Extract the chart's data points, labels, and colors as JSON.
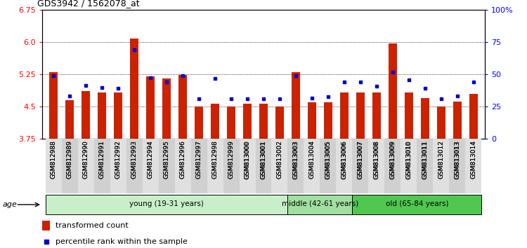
{
  "title": "GDS3942 / 1562078_at",
  "samples": [
    "GSM812988",
    "GSM812989",
    "GSM812990",
    "GSM812991",
    "GSM812992",
    "GSM812993",
    "GSM812994",
    "GSM812995",
    "GSM812996",
    "GSM812997",
    "GSM812998",
    "GSM812999",
    "GSM813000",
    "GSM813001",
    "GSM813002",
    "GSM813003",
    "GSM813004",
    "GSM813005",
    "GSM813006",
    "GSM813007",
    "GSM813008",
    "GSM813009",
    "GSM813010",
    "GSM813011",
    "GSM813012",
    "GSM813013",
    "GSM813014"
  ],
  "red_values": [
    5.3,
    4.65,
    4.87,
    4.83,
    4.83,
    6.08,
    5.2,
    5.15,
    5.23,
    4.5,
    4.57,
    4.5,
    4.57,
    4.57,
    4.5,
    5.3,
    4.6,
    4.6,
    4.83,
    4.83,
    4.83,
    5.97,
    4.83,
    4.7,
    4.5,
    4.62,
    4.8
  ],
  "blue_values": [
    5.22,
    4.75,
    5.0,
    4.95,
    4.93,
    5.82,
    5.17,
    5.08,
    5.22,
    4.68,
    5.15,
    4.68,
    4.68,
    4.68,
    4.68,
    5.22,
    4.7,
    4.73,
    5.07,
    5.07,
    4.97,
    5.3,
    5.13,
    4.93,
    4.68,
    4.75,
    5.07
  ],
  "groups": [
    {
      "label": "young (19-31 years)",
      "start": 0,
      "end": 15,
      "color": "#c8f0c8"
    },
    {
      "label": "middle (42-61 years)",
      "start": 15,
      "end": 19,
      "color": "#a0e0a0"
    },
    {
      "label": "old (65-84 years)",
      "start": 19,
      "end": 27,
      "color": "#50c850"
    }
  ],
  "ylim_left": [
    3.75,
    6.75
  ],
  "ylim_right": [
    0,
    100
  ],
  "yticks_left": [
    3.75,
    4.5,
    5.25,
    6.0,
    6.75
  ],
  "yticks_right": [
    0,
    25,
    50,
    75,
    100
  ],
  "bar_color": "#cc2200",
  "dot_color": "#0000cc",
  "background_color": "#ffffff",
  "plot_bg_color": "#ffffff"
}
